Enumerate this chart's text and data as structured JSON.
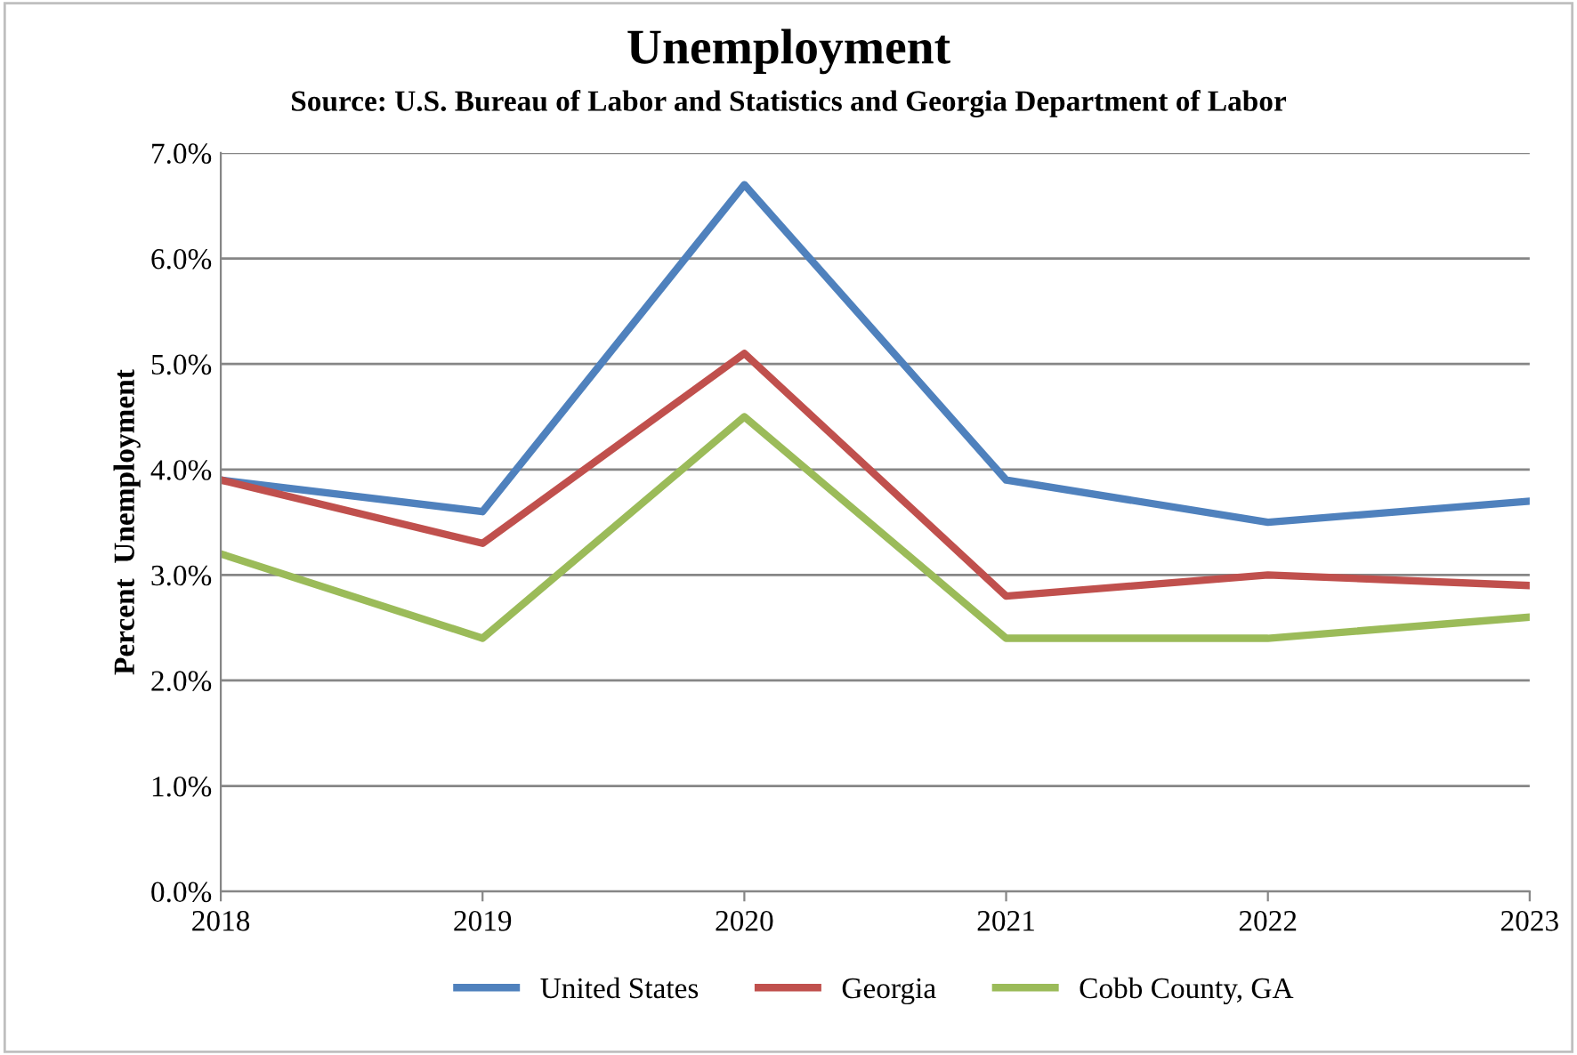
{
  "chart_data": {
    "type": "line",
    "title": "Unemployment",
    "subtitle": "Source: U.S. Bureau of Labor and Statistics and Georgia Department of Labor",
    "ylabel": "Percent  Unemployment",
    "x": [
      2018,
      2019,
      2020,
      2021,
      2022,
      2023
    ],
    "series": [
      {
        "name": "United States",
        "color": "#4f81bd",
        "values": [
          3.9,
          3.6,
          6.7,
          3.9,
          3.5,
          3.7
        ]
      },
      {
        "name": "Georgia",
        "color": "#c0504d",
        "values": [
          3.9,
          3.3,
          5.1,
          2.8,
          3.0,
          2.9
        ]
      },
      {
        "name": "Cobb County, GA",
        "color": "#9bbb59",
        "values": [
          3.2,
          2.4,
          4.5,
          2.4,
          2.4,
          2.6
        ]
      }
    ],
    "xlim": [
      2018,
      2023
    ],
    "xticks": [
      2018,
      2019,
      2020,
      2021,
      2022,
      2023
    ],
    "ylim": [
      0,
      7
    ],
    "yticks": [
      {
        "value": 0,
        "label": "0.0%"
      },
      {
        "value": 1,
        "label": "1.0%"
      },
      {
        "value": 2,
        "label": "2.0%"
      },
      {
        "value": 3,
        "label": "3.0%"
      },
      {
        "value": 4,
        "label": "4.0%"
      },
      {
        "value": 5,
        "label": "5.0%"
      },
      {
        "value": 6,
        "label": "6.0%"
      },
      {
        "value": 7,
        "label": "7.0%"
      }
    ],
    "grid": "y",
    "legend": "bottom",
    "marker": "none",
    "line_style": "solid"
  }
}
